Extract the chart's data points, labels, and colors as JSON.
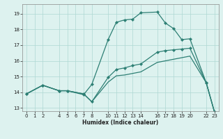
{
  "xlabel": "Humidex (Indice chaleur)",
  "bg_color": "#ddf2ef",
  "grid_color": "#aed8d3",
  "line_color": "#2d7f74",
  "xlim": [
    -0.5,
    23.5
  ],
  "ylim": [
    12.8,
    19.6
  ],
  "xtick_positions": [
    0,
    1,
    2,
    4,
    5,
    6,
    7,
    8,
    10,
    11,
    12,
    13,
    14,
    16,
    17,
    18,
    19,
    20,
    22,
    23
  ],
  "xtick_labels": [
    "0",
    "1",
    "2",
    "4",
    "5",
    "6",
    "7",
    "8",
    "10",
    "11",
    "12",
    "13",
    "14",
    "16",
    "17",
    "18",
    "19",
    "20",
    "22",
    "23"
  ],
  "yticks": [
    13,
    14,
    15,
    16,
    17,
    18,
    19
  ],
  "line1_x": [
    0,
    2,
    4,
    5,
    7,
    8,
    10,
    11,
    12,
    13,
    14,
    16,
    17,
    18,
    19,
    20,
    22,
    23
  ],
  "line1_y": [
    13.9,
    14.45,
    14.1,
    14.1,
    13.85,
    14.5,
    17.35,
    18.45,
    18.6,
    18.65,
    19.05,
    19.1,
    18.4,
    18.05,
    17.35,
    17.4,
    14.6,
    12.75
  ],
  "line2_x": [
    0,
    2,
    4,
    5,
    7,
    8,
    10,
    11,
    12,
    13,
    14,
    16,
    17,
    18,
    19,
    20,
    22,
    23
  ],
  "line2_y": [
    13.9,
    14.45,
    14.1,
    14.1,
    13.9,
    13.4,
    14.95,
    15.45,
    15.55,
    15.7,
    15.8,
    16.55,
    16.65,
    16.7,
    16.75,
    16.8,
    14.6,
    12.75
  ],
  "line3_x": [
    0,
    2,
    4,
    5,
    7,
    8,
    10,
    11,
    12,
    13,
    14,
    16,
    17,
    18,
    19,
    20,
    22,
    23
  ],
  "line3_y": [
    13.9,
    14.45,
    14.1,
    14.1,
    13.9,
    13.4,
    14.65,
    15.05,
    15.1,
    15.2,
    15.3,
    15.9,
    16.0,
    16.1,
    16.2,
    16.3,
    14.6,
    12.75
  ]
}
